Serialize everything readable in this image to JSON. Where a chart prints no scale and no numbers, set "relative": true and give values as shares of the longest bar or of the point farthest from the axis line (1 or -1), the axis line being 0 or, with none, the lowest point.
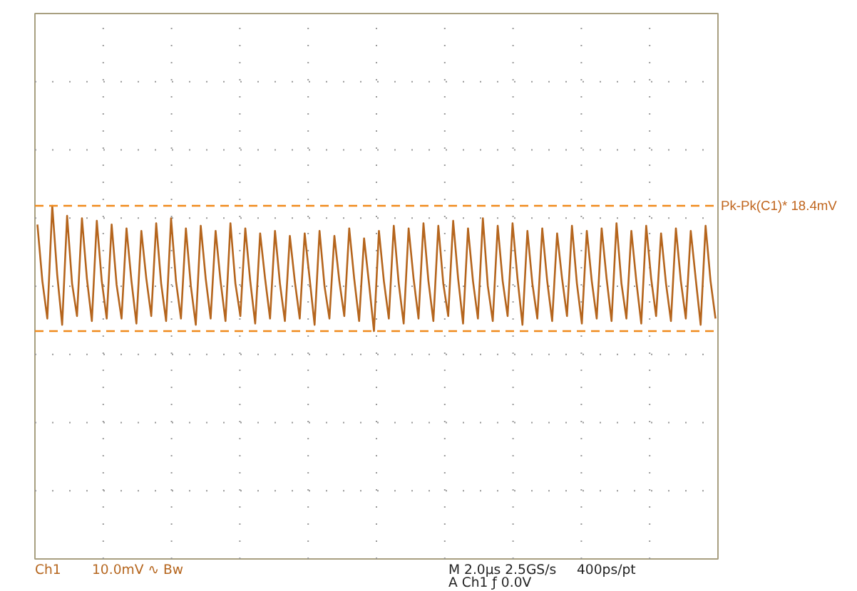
{
  "chart_data": {
    "type": "line",
    "relative": true,
    "grid": true,
    "line_style": "solid",
    "marker": "none",
    "categories": [
      null,
      null,
      null,
      null,
      null,
      null,
      null,
      null,
      null,
      null,
      null,
      null,
      null,
      null,
      null,
      null,
      null,
      null,
      null,
      null,
      null,
      null,
      null,
      null,
      null,
      null,
      null,
      null,
      null,
      null,
      null,
      null,
      null,
      null,
      null,
      null,
      null,
      null,
      null,
      null,
      null,
      null,
      null,
      null,
      null,
      null,
      null,
      null,
      null,
      null,
      null,
      null,
      null,
      null,
      null,
      null,
      null,
      null,
      null,
      null,
      null,
      null,
      null,
      null,
      null,
      null,
      null,
      null,
      null,
      null,
      null,
      null,
      null,
      null,
      null,
      null,
      null,
      null,
      null,
      null,
      null,
      null,
      null,
      null,
      null,
      null,
      null,
      null,
      null,
      null,
      null,
      null,
      null,
      null,
      null,
      null,
      null,
      null,
      null,
      null,
      null,
      null,
      null,
      null,
      null,
      null,
      null,
      null,
      null,
      null,
      null,
      null,
      null,
      null,
      null,
      null,
      null,
      null,
      null,
      null,
      null,
      null,
      null,
      null,
      null,
      null,
      null,
      null,
      null,
      null,
      null,
      null,
      null,
      null,
      null,
      null,
      null,
      null
    ],
    "series": [
      {
        "color": "#b5651d",
        "values": [
          0.85,
          0.4,
          0.1,
          1.0,
          0.45,
          0.05,
          0.92,
          0.38,
          0.12,
          0.9,
          0.42,
          0.08,
          0.88,
          0.4,
          0.1,
          0.85,
          0.37,
          0.1,
          0.82,
          0.4,
          0.06,
          0.8,
          0.42,
          0.12,
          0.86,
          0.38,
          0.08,
          0.9,
          0.4,
          0.1,
          0.82,
          0.36,
          0.05,
          0.84,
          0.42,
          0.1,
          0.8,
          0.4,
          0.08,
          0.86,
          0.38,
          0.12,
          0.82,
          0.4,
          0.06,
          0.78,
          0.42,
          0.1,
          0.8,
          0.38,
          0.08,
          0.76,
          0.4,
          0.1,
          0.78,
          0.42,
          0.05,
          0.8,
          0.36,
          0.1,
          0.76,
          0.4,
          0.12,
          0.82,
          0.42,
          0.08,
          0.74,
          0.38,
          0.0,
          0.8,
          0.4,
          0.1,
          0.84,
          0.38,
          0.06,
          0.82,
          0.42,
          0.1,
          0.86,
          0.4,
          0.08,
          0.84,
          0.38,
          0.12,
          0.88,
          0.42,
          0.06,
          0.82,
          0.4,
          0.1,
          0.9,
          0.36,
          0.08,
          0.84,
          0.4,
          0.12,
          0.86,
          0.42,
          0.05,
          0.8,
          0.38,
          0.1,
          0.82,
          0.4,
          0.08,
          0.78,
          0.42,
          0.12,
          0.84,
          0.38,
          0.06,
          0.8,
          0.4,
          0.1,
          0.82,
          0.42,
          0.08,
          0.86,
          0.38,
          0.1,
          0.8,
          0.4,
          0.06,
          0.84,
          0.42,
          0.12,
          0.78,
          0.38,
          0.08,
          0.82,
          0.4,
          0.1,
          0.8,
          0.42,
          0.05,
          0.84,
          0.4,
          0.1
        ]
      }
    ],
    "ref_lines": [
      {
        "axis": "y",
        "value": 1,
        "label": "Pk-Pk(C1)*     18.4mV",
        "color": "#f08a1c",
        "line_style": "dashed"
      },
      {
        "axis": "y",
        "value": 0,
        "color": "#f08a1c",
        "line_style": "dashed"
      }
    ],
    "annotations": [
      "Ch1",
      "10.0mV ∿ Bw",
      "M 2.0µs 2.5GS/s",
      "400ps/pt",
      "A Ch1 ƒ 0.0V"
    ]
  }
}
